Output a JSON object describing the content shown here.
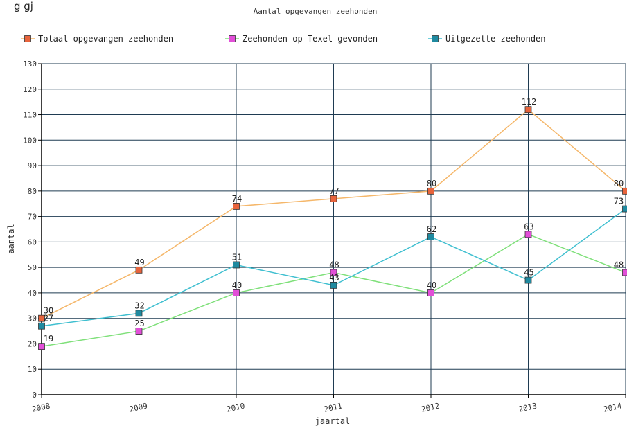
{
  "header_fragment": "g         gj",
  "chart_data": {
    "type": "line",
    "title": "Aantal opgevangen zeehonden",
    "xlabel": "jaartal",
    "ylabel": "aantal",
    "categories": [
      "2008",
      "2009",
      "2010",
      "2011",
      "2012",
      "2013",
      "2014"
    ],
    "ylim": [
      0,
      130
    ],
    "yticks": [
      0,
      10,
      20,
      30,
      40,
      50,
      60,
      70,
      80,
      90,
      100,
      110,
      120,
      130
    ],
    "grid": true,
    "legend_position": "top",
    "series": [
      {
        "name": "Totaal opgevangen zeehonden",
        "values": [
          30,
          49,
          74,
          77,
          80,
          112,
          80
        ],
        "line_color": "#f5b76a",
        "marker_color": "#e8643c"
      },
      {
        "name": "Zeehonden op Texel gevonden",
        "values": [
          19,
          25,
          40,
          48,
          40,
          63,
          48
        ],
        "line_color": "#7fe07a",
        "marker_color": "#e24fd8"
      },
      {
        "name": "Uitgezette zeehonden",
        "values": [
          27,
          32,
          51,
          43,
          62,
          45,
          73
        ],
        "line_color": "#3fbfd0",
        "marker_color": "#1f8aa0"
      }
    ]
  }
}
